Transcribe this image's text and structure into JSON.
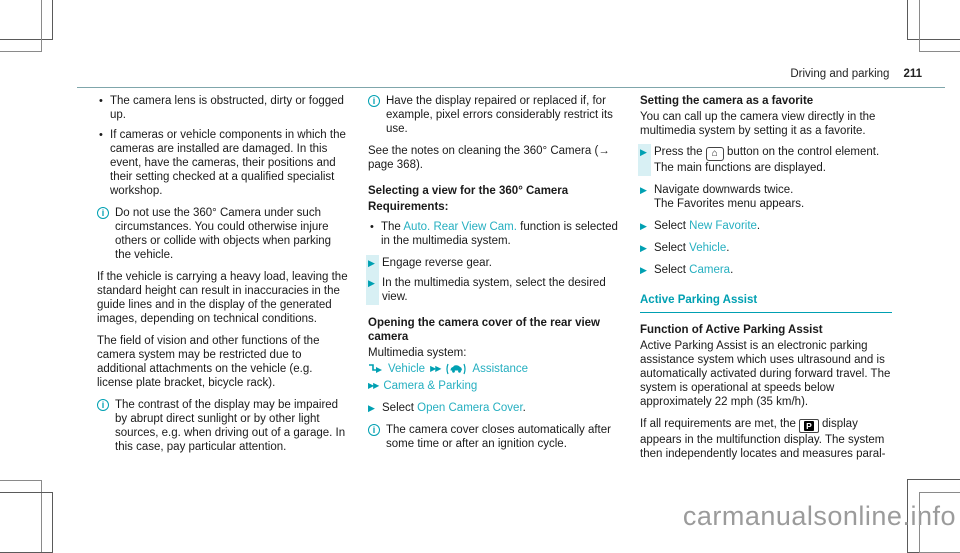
{
  "page": {
    "title": "Driving and parking",
    "page_number": "211",
    "watermark": "carmanualsonline.info"
  },
  "colors": {
    "accent": "#00a0b2",
    "link": "#25afc0",
    "step_bar": "#d8f0f4",
    "text": "#1a1a1a",
    "watermark": "#9b9b9b"
  },
  "icons": {
    "info": "i",
    "bullet": "•",
    "step_arrow": "▶",
    "double_chevron": "▶▶",
    "home": "⌂",
    "parking": "P"
  },
  "col1": {
    "bullet1": "The camera lens is obstructed, dirty or fogged up.",
    "bullet2": "If cameras or vehicle components in which the cameras are installed are damaged. In this event, have the cameras, their positions and their setting checked at a qualified specialist workshop.",
    "note1": "Do not use the 360° Camera under such circumstances. You could otherwise injure others or collide with objects when parking the vehicle.",
    "para1": "If the vehicle is carrying a heavy load, leaving the standard height can result in inaccuracies in the guide lines and in the display of the generated images, depending on technical conditions.",
    "para2": "The field of vision and other functions of the camera system may be restricted due to additional attachments on the vehicle (e.g. license plate bracket, bicycle rack).",
    "note2": "The contrast of the display may be impaired by abrupt direct sunlight or by other light sources, e.g. when driving out of a garage. In this case, pay particular attention."
  },
  "col2": {
    "note1": "Have the display repaired or replaced if, for example, pixel errors considerably restrict its use.",
    "para1": "See the notes on cleaning the 360° Camera (→ page 368).",
    "heading1": "Selecting a view for the 360° Camera",
    "heading1b": "Requirements:",
    "bullet1": [
      {
        "t": "The "
      },
      {
        "t": "Auto. Rear View Cam.",
        "c": "lnk"
      },
      {
        "t": " function is selected in the multimedia system."
      }
    ],
    "step1": "Engage reverse gear.",
    "step2": "In the multimedia system, select the desired view.",
    "heading2": "Opening the camera cover of the rear view camera",
    "para2": "Multimedia system:",
    "menu1_vehicle": "Vehicle",
    "menu1_assistance": "Assistance",
    "menu2": "Camera & Parking",
    "step3": [
      {
        "t": "Select "
      },
      {
        "t": "Open Camera Cover",
        "c": "lnk"
      },
      {
        "t": "."
      }
    ],
    "note2": "The camera cover closes automatically after some time or after an ignition cycle."
  },
  "col3": {
    "heading1": "Setting the camera as a favorite",
    "para1": "You can call up the camera view directly in the multimedia system by setting it as a favorite.",
    "step1_pre": "Press the ",
    "step1_post": " button on the control element.",
    "step1_result": "The main functions are displayed.",
    "step2": "Navigate downwards twice.",
    "step2_result": "The Favorites menu appears.",
    "step3": [
      {
        "t": "Select "
      },
      {
        "t": "New Favorite",
        "c": "lnk"
      },
      {
        "t": "."
      }
    ],
    "step4": [
      {
        "t": "Select "
      },
      {
        "t": "Vehicle",
        "c": "lnk"
      },
      {
        "t": "."
      }
    ],
    "step5": [
      {
        "t": "Select "
      },
      {
        "t": "Camera",
        "c": "lnk"
      },
      {
        "t": "."
      }
    ],
    "heading2": "Active Parking Assist",
    "heading3": "Function of Active Parking Assist",
    "para2": "Active Parking Assist is an electronic parking assistance system which uses ultrasound and is automatically activated during forward travel. The system is operational at speeds below approximately 22 mph (35 km/h).",
    "para3_pre": "If all requirements are met, the ",
    "para3_post": " display appears in the multifunction display. The system then independently locates and measures paral-"
  }
}
